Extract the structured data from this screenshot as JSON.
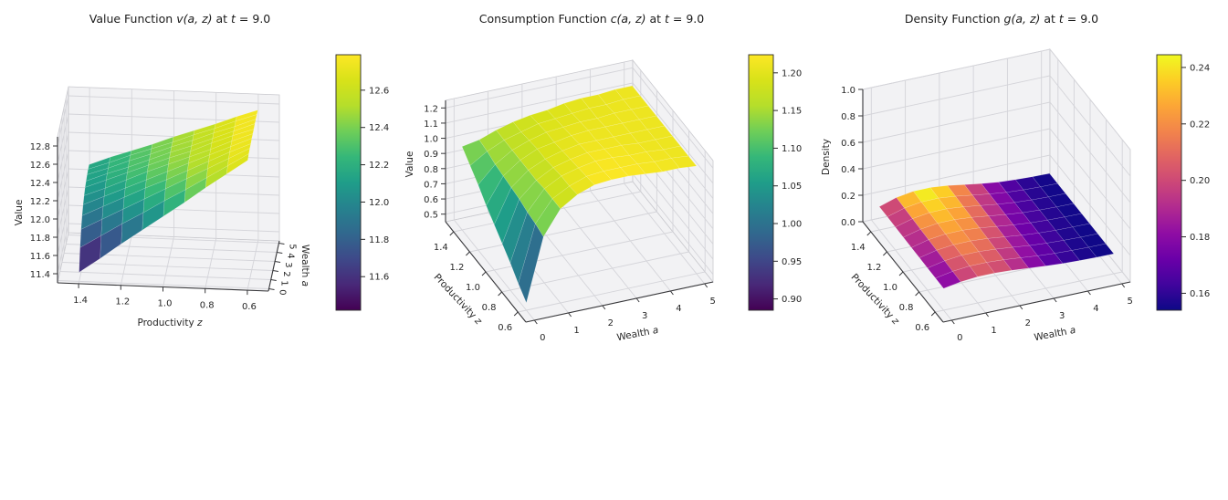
{
  "figure": {
    "background": "#ffffff",
    "time_label": "t = 9.0"
  },
  "plots": [
    {
      "title": {
        "prefix": "Value Function ",
        "func": "v(a, z)",
        "mid": " at ",
        "tvar": "t",
        "suffix": " = 9.0"
      },
      "x_label": {
        "text": "Productivity ",
        "var": "z"
      },
      "y_label": {
        "text": "Wealth ",
        "var": "a"
      },
      "z_label": {
        "text": "Value",
        "var": ""
      },
      "x_ticks": [
        "1.4",
        "1.2",
        "1.0",
        "0.8",
        "0.6"
      ],
      "y_ticks": [
        "0",
        "1",
        "2",
        "3",
        "4",
        "5"
      ],
      "v_ticks": [
        "11.4",
        "11.6",
        "11.8",
        "12.0",
        "12.2",
        "12.4",
        "12.6",
        "12.8"
      ],
      "colorbar": {
        "cmap": "viridis",
        "vmin": 11.42,
        "vmax": 12.79,
        "ticks": [
          "12.6",
          "12.4",
          "12.2",
          "12.0",
          "11.8",
          "11.6"
        ]
      }
    },
    {
      "title": {
        "prefix": "Consumption Function ",
        "func": "c(a, z)",
        "mid": " at ",
        "tvar": "t",
        "suffix": " = 9.0"
      },
      "x_label": {
        "text": "Productivity ",
        "var": "z"
      },
      "y_label": {
        "text": "Wealth ",
        "var": "a"
      },
      "z_label": {
        "text": "Value",
        "var": ""
      },
      "x_ticks": [
        "1.4",
        "1.2",
        "1.0",
        "0.8",
        "0.6"
      ],
      "y_ticks": [
        "0",
        "1",
        "2",
        "3",
        "4",
        "5"
      ],
      "v_ticks": [
        "0.5",
        "0.6",
        "0.7",
        "0.8",
        "0.9",
        "1.0",
        "1.1",
        "1.2"
      ],
      "colorbar": {
        "cmap": "viridis",
        "vmin": 0.885,
        "vmax": 1.224,
        "ticks": [
          "1.20",
          "1.15",
          "1.10",
          "1.05",
          "1.00",
          "0.95",
          "0.90"
        ]
      }
    },
    {
      "title": {
        "prefix": "Density Function ",
        "func": "g(a, z)",
        "mid": " at ",
        "tvar": "t",
        "suffix": " = 9.0"
      },
      "x_label": {
        "text": "Productivity ",
        "var": "z"
      },
      "y_label": {
        "text": "Wealth ",
        "var": "a"
      },
      "z_label": {
        "text": "Density",
        "var": ""
      },
      "x_ticks": [
        "1.4",
        "1.2",
        "1.0",
        "0.8",
        "0.6"
      ],
      "y_ticks": [
        "0",
        "1",
        "2",
        "3",
        "4",
        "5"
      ],
      "v_ticks": [
        "0.0",
        "0.2",
        "0.4",
        "0.6",
        "0.8",
        "1.0"
      ],
      "colorbar": {
        "cmap": "plasma",
        "vmin": 0.154,
        "vmax": 0.2445,
        "ticks": [
          "0.24",
          "0.22",
          "0.20",
          "0.18",
          "0.16"
        ]
      }
    }
  ],
  "chart_data": [
    {
      "type": "surface",
      "title": "Value Function v(a, z) at t = 9.0",
      "xlabel": "Productivity z",
      "ylabel": "Wealth a",
      "zlabel": "Value",
      "cmap": "viridis",
      "zlim": [
        11.3,
        12.9
      ],
      "a_grid": [
        0,
        0.5,
        1,
        1.5,
        2,
        2.5,
        3,
        3.5,
        4,
        4.5,
        5
      ],
      "z_grid": [
        0.6,
        0.7,
        0.8,
        0.9,
        1.0,
        1.1,
        1.2,
        1.3,
        1.4
      ],
      "values": [
        [
          12.7,
          12.72,
          12.73,
          12.73,
          12.74,
          12.74,
          12.74,
          12.75,
          12.75,
          12.75,
          12.75
        ],
        [
          12.54,
          12.58,
          12.61,
          12.63,
          12.64,
          12.65,
          12.66,
          12.66,
          12.66,
          12.67,
          12.67
        ],
        [
          12.38,
          12.44,
          12.49,
          12.52,
          12.54,
          12.55,
          12.57,
          12.57,
          12.58,
          12.58,
          12.58
        ],
        [
          12.21,
          12.3,
          12.37,
          12.41,
          12.44,
          12.46,
          12.47,
          12.48,
          12.49,
          12.5,
          12.5
        ],
        [
          12.05,
          12.17,
          12.25,
          12.3,
          12.34,
          12.37,
          12.39,
          12.4,
          12.41,
          12.41,
          12.42
        ],
        [
          11.89,
          12.03,
          12.13,
          12.2,
          12.24,
          12.28,
          12.3,
          12.31,
          12.32,
          12.33,
          12.33
        ],
        [
          11.73,
          11.9,
          12.01,
          12.09,
          12.14,
          12.18,
          12.21,
          12.22,
          12.24,
          12.25,
          12.25
        ],
        [
          11.56,
          11.76,
          11.89,
          11.98,
          12.04,
          12.08,
          12.12,
          12.14,
          12.15,
          12.16,
          12.17
        ],
        [
          11.4,
          11.62,
          11.77,
          11.87,
          11.94,
          11.99,
          12.03,
          12.05,
          12.07,
          12.08,
          12.08
        ]
      ]
    },
    {
      "type": "surface",
      "title": "Consumption Function c(a, z) at t = 9.0",
      "xlabel": "Productivity z",
      "ylabel": "Wealth a",
      "zlabel": "Value",
      "cmap": "viridis",
      "zlim": [
        0.45,
        1.25
      ],
      "a_grid": [
        0,
        0.5,
        1,
        1.5,
        2,
        2.5,
        3,
        3.5,
        4,
        4.5,
        5
      ],
      "z_grid": [
        0.6,
        0.7,
        0.8,
        0.9,
        1.0,
        1.1,
        1.2,
        1.3,
        1.4
      ],
      "values": [
        [
          0.5,
          0.91,
          1.07,
          1.14,
          1.18,
          1.19,
          1.19,
          1.18,
          1.17,
          1.17,
          1.16
        ],
        [
          0.56,
          0.93,
          1.07,
          1.13,
          1.17,
          1.18,
          1.18,
          1.18,
          1.17,
          1.17,
          1.16
        ],
        [
          0.63,
          0.94,
          1.07,
          1.13,
          1.16,
          1.18,
          1.18,
          1.17,
          1.17,
          1.16,
          1.16
        ],
        [
          0.69,
          0.96,
          1.06,
          1.12,
          1.15,
          1.17,
          1.17,
          1.17,
          1.16,
          1.16,
          1.16
        ],
        [
          0.75,
          0.97,
          1.06,
          1.11,
          1.14,
          1.16,
          1.16,
          1.16,
          1.16,
          1.16,
          1.16
        ],
        [
          0.81,
          0.98,
          1.06,
          1.11,
          1.13,
          1.15,
          1.16,
          1.16,
          1.16,
          1.16,
          1.16
        ],
        [
          0.88,
          0.99,
          1.06,
          1.1,
          1.13,
          1.14,
          1.15,
          1.15,
          1.16,
          1.16,
          1.16
        ],
        [
          0.94,
          1.01,
          1.06,
          1.09,
          1.12,
          1.13,
          1.14,
          1.15,
          1.15,
          1.16,
          1.16
        ],
        [
          1.0,
          1.02,
          1.06,
          1.09,
          1.11,
          1.12,
          1.14,
          1.15,
          1.15,
          1.16,
          1.16
        ]
      ]
    },
    {
      "type": "surface",
      "title": "Density Function g(a, z) at t = 9.0",
      "xlabel": "Productivity z",
      "ylabel": "Wealth a",
      "zlabel": "Density",
      "cmap": "plasma",
      "zlim": [
        0.0,
        1.0
      ],
      "a_grid": [
        0,
        0.5,
        1,
        1.5,
        2,
        2.5,
        3,
        3.5,
        4,
        4.5,
        5
      ],
      "z_grid": [
        0.6,
        0.7,
        0.8,
        0.9,
        1.0,
        1.1,
        1.2,
        1.3,
        1.4
      ],
      "values": [
        [
          0.165,
          0.187,
          0.198,
          0.198,
          0.191,
          0.18,
          0.169,
          0.16,
          0.155,
          0.152,
          0.151
        ],
        [
          0.166,
          0.19,
          0.203,
          0.203,
          0.195,
          0.183,
          0.17,
          0.161,
          0.155,
          0.152,
          0.151
        ],
        [
          0.167,
          0.194,
          0.208,
          0.208,
          0.199,
          0.186,
          0.172,
          0.162,
          0.156,
          0.152,
          0.151
        ],
        [
          0.169,
          0.198,
          0.212,
          0.213,
          0.204,
          0.189,
          0.174,
          0.163,
          0.156,
          0.153,
          0.151
        ],
        [
          0.17,
          0.202,
          0.217,
          0.218,
          0.208,
          0.192,
          0.176,
          0.164,
          0.157,
          0.153,
          0.151
        ],
        [
          0.172,
          0.205,
          0.222,
          0.223,
          0.212,
          0.195,
          0.178,
          0.165,
          0.157,
          0.153,
          0.151
        ],
        [
          0.173,
          0.209,
          0.227,
          0.228,
          0.216,
          0.198,
          0.18,
          0.166,
          0.158,
          0.153,
          0.151
        ],
        [
          0.175,
          0.213,
          0.232,
          0.233,
          0.22,
          0.201,
          0.182,
          0.167,
          0.158,
          0.153,
          0.151
        ],
        [
          0.176,
          0.217,
          0.237,
          0.238,
          0.225,
          0.204,
          0.184,
          0.168,
          0.159,
          0.154,
          0.151
        ]
      ]
    }
  ]
}
